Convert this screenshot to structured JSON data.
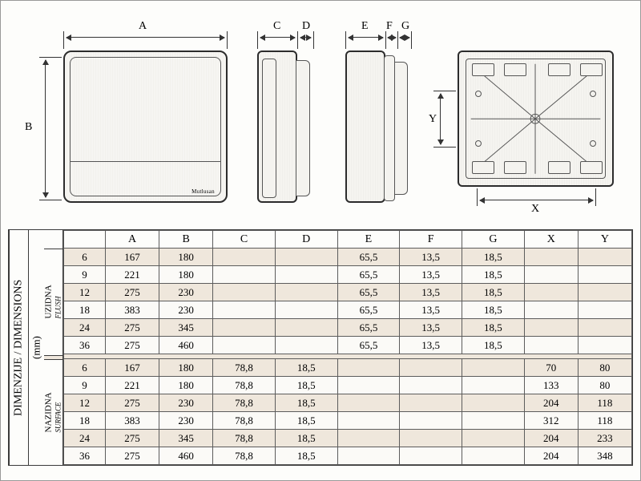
{
  "labels": {
    "A": "A",
    "B": "B",
    "C": "C",
    "D": "D",
    "E": "E",
    "F": "F",
    "G": "G",
    "X": "X",
    "Y": "Y"
  },
  "logo": "Mutlusan",
  "table": {
    "title": "DIMENZIJE / DIMENSIONS",
    "unit": "(mm)",
    "group1": {
      "label": "UZIDNA",
      "label_sub": "FLUSH"
    },
    "group2": {
      "label": "NAZIDNA",
      "label_sub": "SURFACE"
    },
    "columns": [
      "A",
      "B",
      "C",
      "D",
      "E",
      "F",
      "G",
      "X",
      "Y"
    ],
    "sizes": [
      "6",
      "9",
      "12",
      "18",
      "24",
      "36"
    ],
    "flush": [
      {
        "size": "6",
        "A": "167",
        "B": "180",
        "C": "",
        "D": "",
        "E": "65,5",
        "F": "13,5",
        "G": "18,5",
        "X": "",
        "Y": ""
      },
      {
        "size": "9",
        "A": "221",
        "B": "180",
        "C": "",
        "D": "",
        "E": "65,5",
        "F": "13,5",
        "G": "18,5",
        "X": "",
        "Y": ""
      },
      {
        "size": "12",
        "A": "275",
        "B": "230",
        "C": "",
        "D": "",
        "E": "65,5",
        "F": "13,5",
        "G": "18,5",
        "X": "",
        "Y": ""
      },
      {
        "size": "18",
        "A": "383",
        "B": "230",
        "C": "",
        "D": "",
        "E": "65,5",
        "F": "13,5",
        "G": "18,5",
        "X": "",
        "Y": ""
      },
      {
        "size": "24",
        "A": "275",
        "B": "345",
        "C": "",
        "D": "",
        "E": "65,5",
        "F": "13,5",
        "G": "18,5",
        "X": "",
        "Y": ""
      },
      {
        "size": "36",
        "A": "275",
        "B": "460",
        "C": "",
        "D": "",
        "E": "65,5",
        "F": "13,5",
        "G": "18,5",
        "X": "",
        "Y": ""
      }
    ],
    "surface": [
      {
        "size": "6",
        "A": "167",
        "B": "180",
        "C": "78,8",
        "D": "18,5",
        "E": "",
        "F": "",
        "G": "",
        "X": "70",
        "Y": "80"
      },
      {
        "size": "9",
        "A": "221",
        "B": "180",
        "C": "78,8",
        "D": "18,5",
        "E": "",
        "F": "",
        "G": "",
        "X": "133",
        "Y": "80"
      },
      {
        "size": "12",
        "A": "275",
        "B": "230",
        "C": "78,8",
        "D": "18,5",
        "E": "",
        "F": "",
        "G": "",
        "X": "204",
        "Y": "118"
      },
      {
        "size": "18",
        "A": "383",
        "B": "230",
        "C": "78,8",
        "D": "18,5",
        "E": "",
        "F": "",
        "G": "",
        "X": "312",
        "Y": "118"
      },
      {
        "size": "24",
        "A": "275",
        "B": "345",
        "C": "78,8",
        "D": "18,5",
        "E": "",
        "F": "",
        "G": "",
        "X": "204",
        "Y": "233"
      },
      {
        "size": "36",
        "A": "275",
        "B": "460",
        "C": "78,8",
        "D": "18,5",
        "E": "",
        "F": "",
        "G": "",
        "X": "204",
        "Y": "348"
      }
    ]
  },
  "style": {
    "row_odd_bg": "#efe7dc",
    "row_even_bg": "#fbfaf7",
    "border_color": "#5c5c5c"
  }
}
